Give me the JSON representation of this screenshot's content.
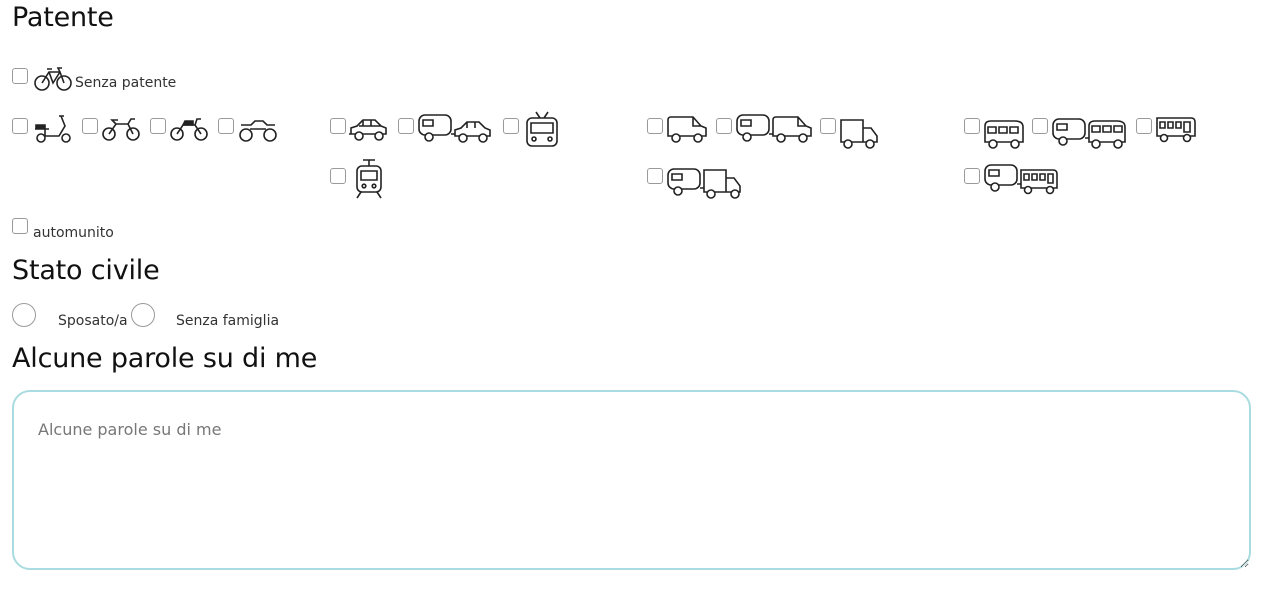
{
  "sections": {
    "license_title": "Patente",
    "civil_title": "Stato civile",
    "about_title": "Alcune parole su di me"
  },
  "license": {
    "no_license_label": "Senza patente",
    "motorized_label": "automunito"
  },
  "civil": {
    "married_label": "Sposato/a",
    "single_label": "Senza famiglia"
  },
  "about": {
    "placeholder": "Alcune parole su di me",
    "value": ""
  },
  "icons": {
    "bicycle": "bicycle-icon",
    "scooter": "scooter-icon",
    "dirtbike": "dirtbike-icon",
    "motorcycle": "motorcycle-icon",
    "quad": "quad-icon",
    "car": "car-icon",
    "car_trailer": "car-trailer-icon",
    "trolleybus": "trolleybus-icon",
    "tram": "tram-icon",
    "van": "van-icon",
    "van_trailer": "van-trailer-icon",
    "truck": "truck-icon",
    "truck_trailer": "truck-trailer-icon",
    "minibus": "minibus-icon",
    "minibus_trailer": "minibus-trailer-icon",
    "bus": "bus-icon",
    "bus_trailer": "bus-trailer-icon"
  }
}
